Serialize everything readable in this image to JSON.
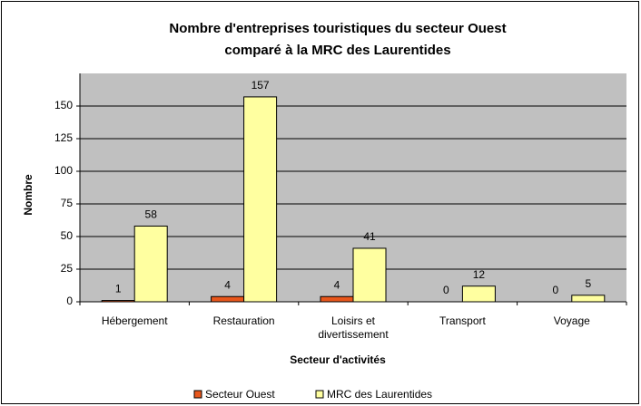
{
  "chart_data": {
    "type": "bar",
    "title": [
      "Nombre d'entreprises touristiques du secteur Ouest",
      "comparé à la MRC des Laurentides"
    ],
    "x_label": "Secteur d'activités",
    "y_label": "Nombre",
    "categories": [
      "Hébergement",
      "Restauration",
      "Loisirs et divertissement",
      "Transport",
      "Voyage"
    ],
    "series": [
      {
        "name": "Secteur Ouest",
        "color": "#e8571c",
        "values": [
          1,
          4,
          4,
          0,
          0
        ]
      },
      {
        "name": "MRC des Laurentides",
        "color": "#ffffa0",
        "values": [
          58,
          157,
          41,
          12,
          5
        ]
      }
    ],
    "ylim": [
      0,
      175
    ],
    "yticks": [
      0,
      25,
      50,
      75,
      100,
      125,
      150
    ],
    "grid": true,
    "legend": "bottom"
  }
}
